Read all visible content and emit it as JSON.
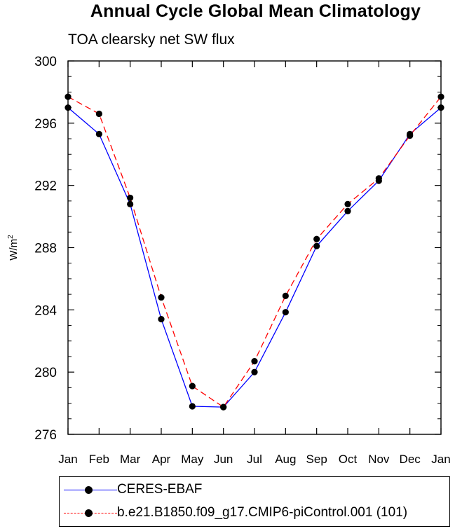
{
  "chart_data": {
    "type": "line",
    "title": "Annual Cycle Global Mean Climatology",
    "subtitle": "TOA clearsky net SW flux",
    "ylabel_base": "W/m",
    "ylabel_sup": "2",
    "categories": [
      "Jan",
      "Feb",
      "Mar",
      "Apr",
      "May",
      "Jun",
      "Jul",
      "Aug",
      "Sep",
      "Oct",
      "Nov",
      "Dec",
      "Jan"
    ],
    "ylim": [
      276,
      300
    ],
    "yticks": [
      "276",
      "280",
      "284",
      "288",
      "292",
      "296",
      "300"
    ],
    "series": [
      {
        "name": "CERES-EBAF",
        "color": "#0000ff",
        "dash": "solid",
        "values": [
          297.0,
          295.3,
          290.8,
          283.4,
          277.8,
          277.75,
          280.0,
          283.85,
          288.1,
          290.35,
          292.3,
          295.3,
          297.0
        ]
      },
      {
        "name": "b.e21.B1850.f09_g17.CMIP6-piControl.001 (101)",
        "color": "#ff0000",
        "dash": "dashed",
        "values": [
          297.7,
          296.6,
          291.2,
          284.8,
          279.1,
          277.75,
          280.7,
          284.9,
          288.55,
          290.8,
          292.45,
          295.2,
          297.7
        ]
      }
    ],
    "grid": false,
    "legend_position": "bottom"
  }
}
